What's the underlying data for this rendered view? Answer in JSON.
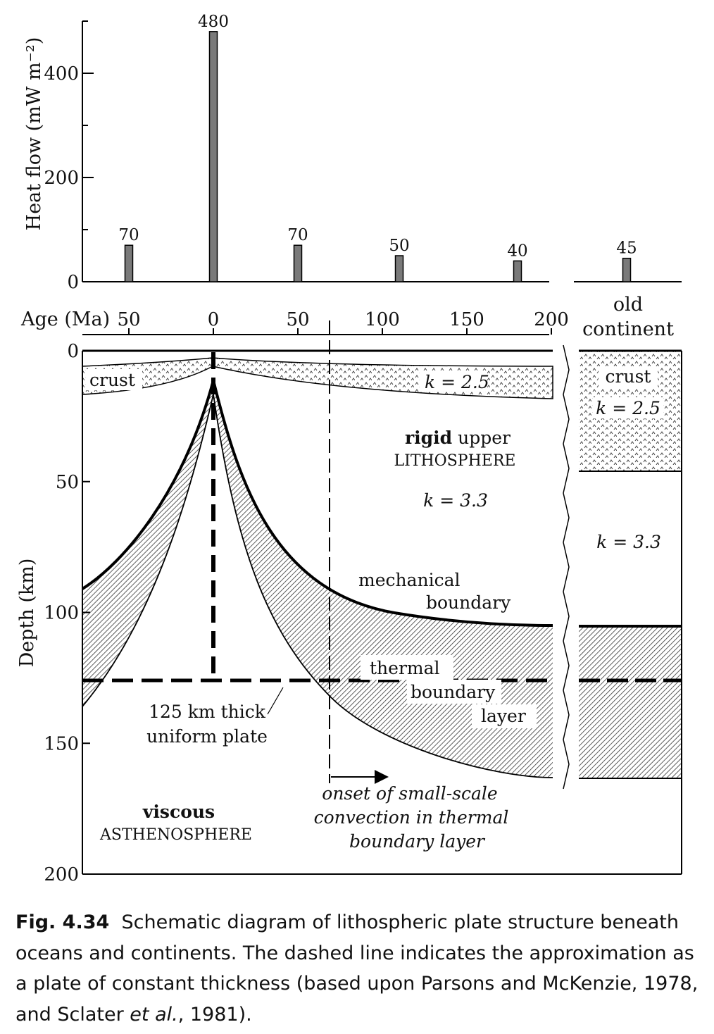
{
  "chart_data": {
    "type": "bar",
    "ylabel": "Heat flow (mW m⁻²)",
    "ylim": [
      0,
      500
    ],
    "yticks": [
      "0",
      "200",
      "400"
    ],
    "xlabel": "Age (Ma)",
    "xticks": [
      "50",
      "0",
      "50",
      "100",
      "150",
      "200"
    ],
    "bars": [
      {
        "age": -50,
        "value": 70,
        "label": "70"
      },
      {
        "age": 0,
        "value": 480,
        "label": "480"
      },
      {
        "age": 50,
        "value": 70,
        "label": "70"
      },
      {
        "age": 110,
        "value": 50,
        "label": "50"
      },
      {
        "age": 180,
        "value": 40,
        "label": "40"
      }
    ],
    "continent_bar": {
      "value": 45,
      "label": "45"
    }
  },
  "diagram": {
    "depth_axis_label": "Depth (km)",
    "depth_ticks": [
      "0",
      "50",
      "100",
      "150",
      "200"
    ],
    "old_continent": [
      "old",
      "continent"
    ],
    "crust": "crust",
    "k_crust": "k = 2.5",
    "k_mantle": "k = 3.3",
    "rigid_bold": "rigid",
    "rigid_rest": "upper",
    "lithosphere": "LITHOSPHERE",
    "mechanical": "mechanical",
    "boundary": "boundary",
    "thermal": "thermal",
    "boundary2": "boundary",
    "layer": "layer",
    "plate_line1": "125 km thick",
    "plate_line2": "uniform plate",
    "viscous": "viscous",
    "asthenosphere": "ASTHENOSPHERE",
    "onset_line1": "onset of small-scale",
    "onset_line2": "convection in thermal",
    "onset_line3": "boundary layer",
    "continent_crust": "crust",
    "continent_k_crust": "k = 2.5",
    "continent_k_mantle": "k = 3.3"
  },
  "caption": {
    "fig": "Fig. 4.34",
    "text": "Schematic diagram of lithospheric plate structure beneath oceans and continents. The dashed line indicates the approximation as a plate of constant thickness (based upon Parsons and McKenzie, 1978, and Sclater ",
    "etal": "et al.",
    "text_end": ", 1981)."
  }
}
